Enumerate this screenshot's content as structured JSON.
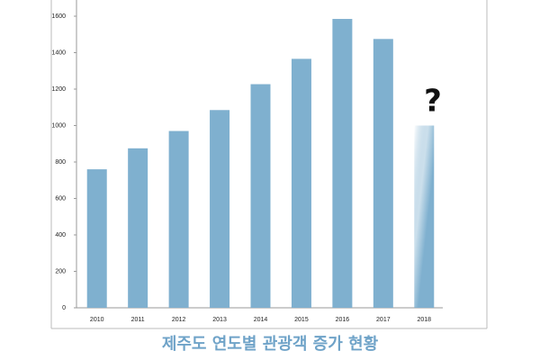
{
  "chart_data": {
    "type": "bar",
    "title": "제주도 연도별 관광객 증가 현황",
    "categories": [
      "2010",
      "2011",
      "2012",
      "2013",
      "2014",
      "2015",
      "2016",
      "2017",
      "2018"
    ],
    "values": [
      760,
      875,
      970,
      1085,
      1227,
      1366,
      1585,
      1475,
      1000
    ],
    "color": "#7fb0cf",
    "annotation": "?",
    "ylim": [
      0,
      1600
    ],
    "yticks": [
      0,
      200,
      400,
      600,
      800,
      1000,
      1200,
      1400,
      1600
    ],
    "grid": false
  }
}
